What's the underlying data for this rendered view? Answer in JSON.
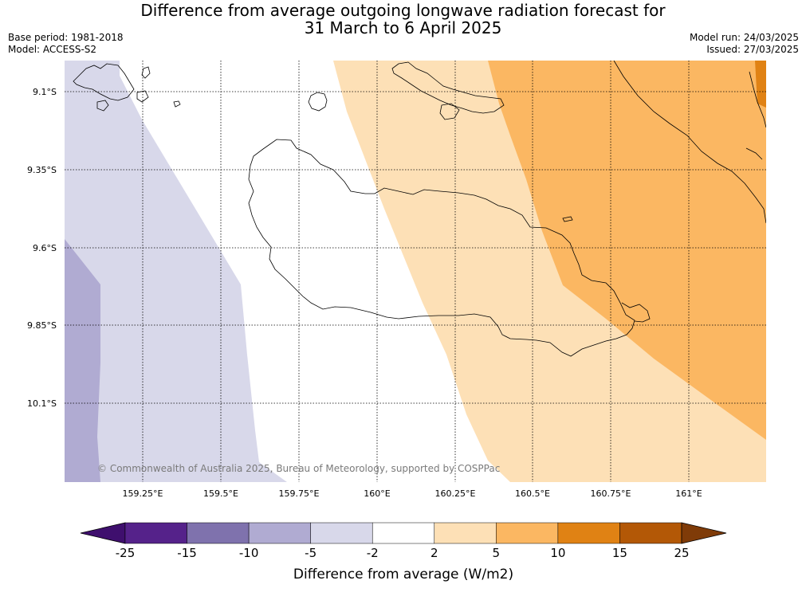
{
  "title": {
    "line1": "Difference from average outgoing longwave radiation forecast for",
    "line2": "31 March to 6 April 2025"
  },
  "meta": {
    "base_period": "Base period: 1981-2018",
    "model": "Model: ACCESS-S2",
    "model_run": "Model run: 24/03/2025",
    "issued": "Issued: 27/03/2025"
  },
  "map": {
    "lat_labels": [
      "9.1°S",
      "9.35°S",
      "9.6°S",
      "9.85°S",
      "10.1°S"
    ],
    "lon_labels": [
      "159.25°E",
      "159.5°E",
      "159.75°E",
      "160°E",
      "160.25°E",
      "160.5°E",
      "160.75°E",
      "161°E"
    ],
    "copyright": "© Commonwealth of Australia 2025, Bureau of Meteorology, supported by COSPPac"
  },
  "colorbar": {
    "title": "Difference from average (W/m2)",
    "ticks": [
      "-25",
      "-15",
      "-10",
      "-5",
      "-2",
      "2",
      "5",
      "10",
      "15",
      "25"
    ],
    "colors": [
      "#3f0f6e",
      "#55228a",
      "#7f72ad",
      "#b0abd2",
      "#d8d8ea",
      "#ffffff",
      "#fde0b6",
      "#fbb762",
      "#e08214",
      "#b35806",
      "#7f3b08"
    ]
  }
}
